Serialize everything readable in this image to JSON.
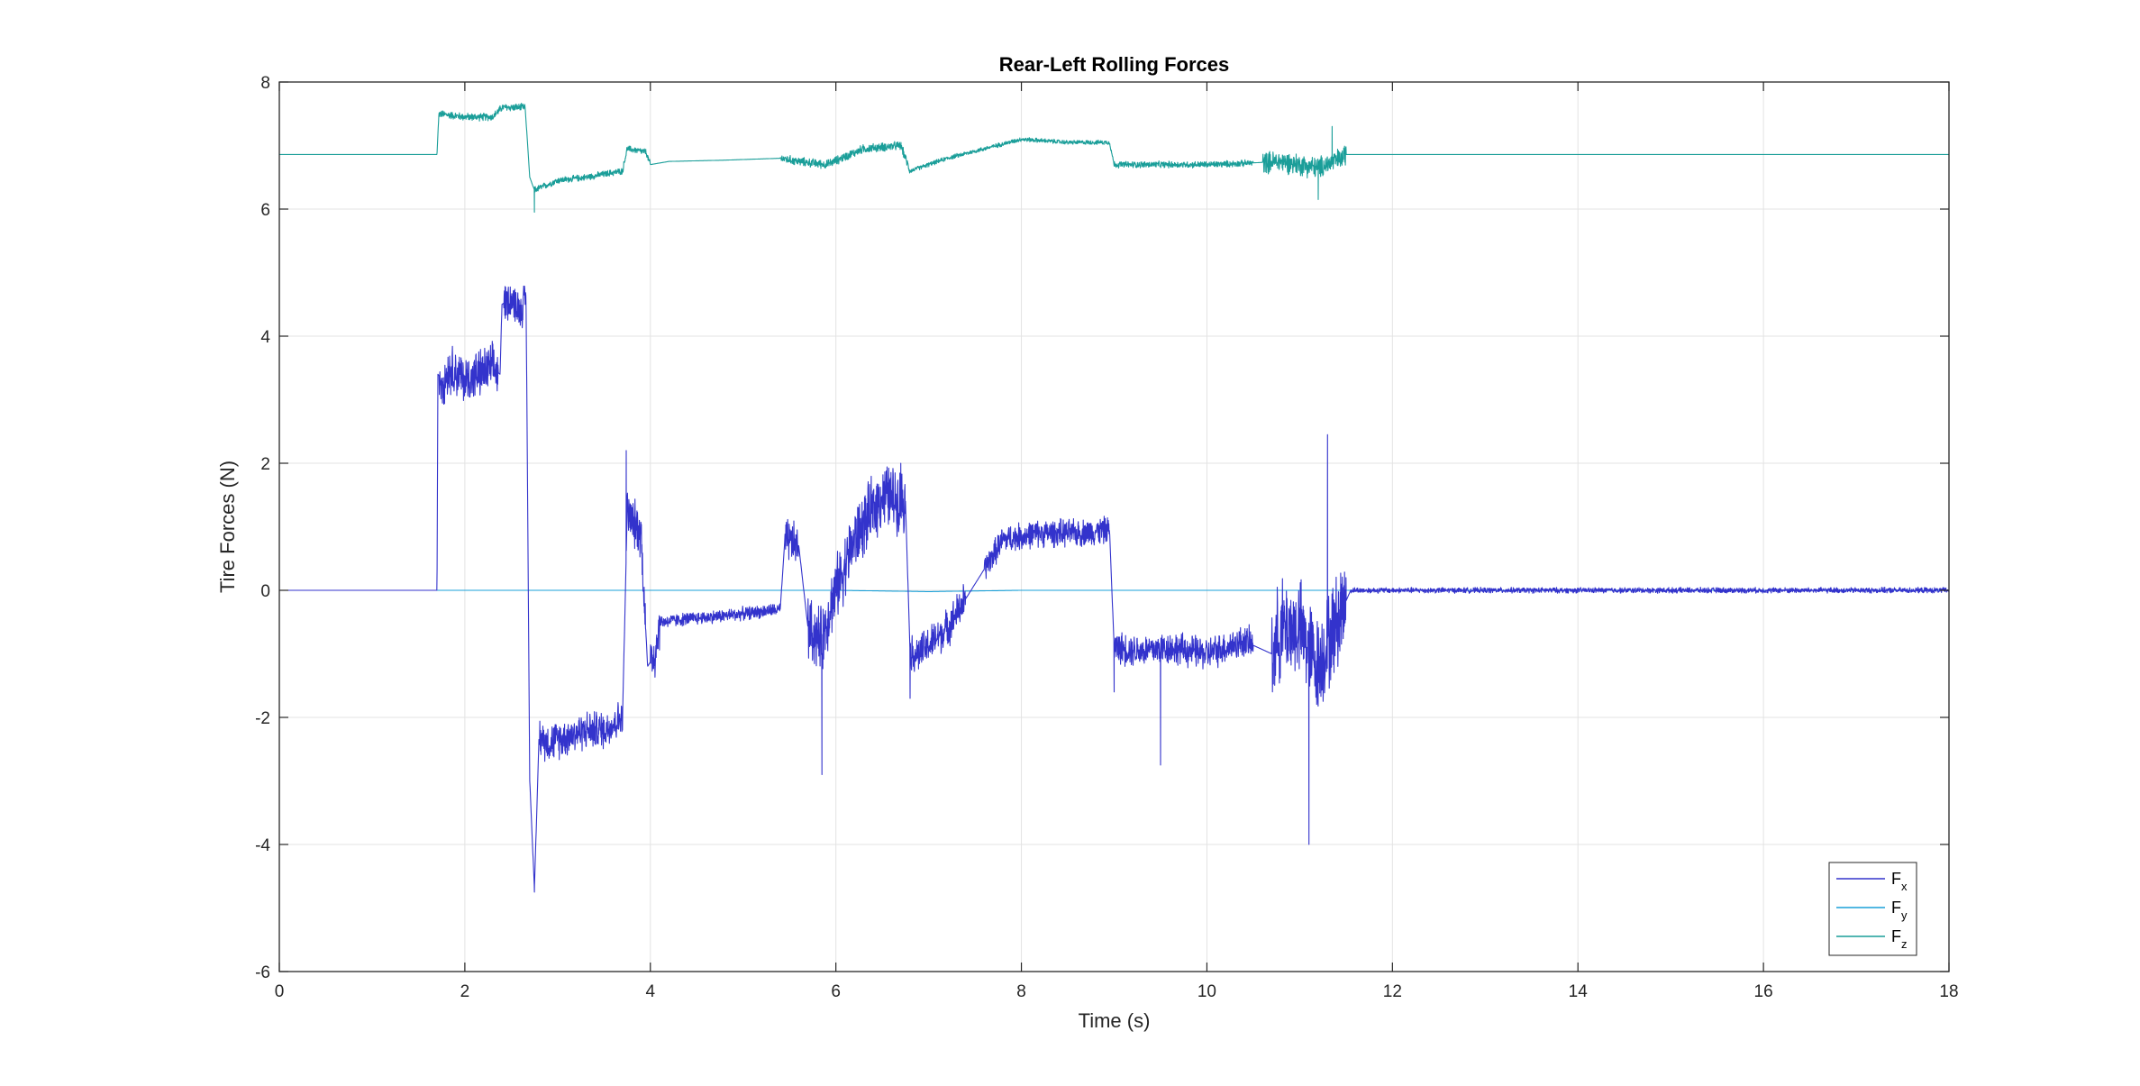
{
  "chart_data": {
    "type": "line",
    "title": "Rear-Left Rolling Forces",
    "xlabel": "Time (s)",
    "ylabel": "Tire Forces (N)",
    "xlim": [
      0,
      18
    ],
    "ylim": [
      -6,
      8
    ],
    "xticks": [
      0,
      2,
      4,
      6,
      8,
      10,
      12,
      14,
      16,
      18
    ],
    "xtick_labels": [
      "0",
      "2",
      "4",
      "6",
      "8",
      "10",
      "12",
      "14",
      "16",
      "18"
    ],
    "yticks": [
      -6,
      -4,
      -2,
      0,
      2,
      4,
      6,
      8
    ],
    "ytick_labels": [
      "-6",
      "-4",
      "-2",
      "0",
      "2",
      "4",
      "6",
      "8"
    ],
    "grid": true,
    "legend_position": "bottom-right",
    "series": [
      {
        "name": "F",
        "subscript": "x",
        "color": "#3333cc",
        "points": [
          [
            0,
            0
          ],
          [
            1.7,
            0
          ],
          [
            1.71,
            3.4
          ],
          [
            1.76,
            3.3
          ],
          [
            1.85,
            3.5
          ],
          [
            2.0,
            3.3
          ],
          [
            2.15,
            3.4
          ],
          [
            2.3,
            3.5
          ],
          [
            2.38,
            3.4
          ],
          [
            2.4,
            4.5
          ],
          [
            2.5,
            4.6
          ],
          [
            2.6,
            4.4
          ],
          [
            2.66,
            4.6
          ],
          [
            2.7,
            -3.0
          ],
          [
            2.75,
            -4.7
          ],
          [
            2.8,
            -2.3
          ],
          [
            2.9,
            -2.4
          ],
          [
            3.1,
            -2.3
          ],
          [
            3.3,
            -2.2
          ],
          [
            3.5,
            -2.2
          ],
          [
            3.7,
            -2.0
          ],
          [
            3.75,
            1.2
          ],
          [
            3.8,
            1.1
          ],
          [
            3.9,
            0.9
          ],
          [
            3.97,
            -1.2
          ],
          [
            4.05,
            -1.0
          ],
          [
            4.1,
            -0.5
          ],
          [
            4.4,
            -0.45
          ],
          [
            4.8,
            -0.4
          ],
          [
            5.1,
            -0.35
          ],
          [
            5.4,
            -0.3
          ],
          [
            5.45,
            0.8
          ],
          [
            5.6,
            0.7
          ],
          [
            5.7,
            -0.6
          ],
          [
            5.85,
            -0.8
          ],
          [
            5.95,
            -0.2
          ],
          [
            6.2,
            0.8
          ],
          [
            6.5,
            1.5
          ],
          [
            6.75,
            1.4
          ],
          [
            6.8,
            -1.0
          ],
          [
            6.9,
            -1.0
          ],
          [
            7.2,
            -0.6
          ],
          [
            7.5,
            0.1
          ],
          [
            7.8,
            0.8
          ],
          [
            8.2,
            0.9
          ],
          [
            8.6,
            0.9
          ],
          [
            8.95,
            0.95
          ],
          [
            9.0,
            -0.9
          ],
          [
            9.3,
            -0.95
          ],
          [
            9.6,
            -0.9
          ],
          [
            10.0,
            -1.0
          ],
          [
            10.4,
            -0.8
          ],
          [
            10.7,
            -1.0
          ],
          [
            10.8,
            -0.6
          ],
          [
            11.0,
            -0.6
          ],
          [
            11.2,
            -1.2
          ],
          [
            11.4,
            -0.5
          ],
          [
            11.55,
            0.0
          ],
          [
            12,
            0.0
          ],
          [
            14,
            0.0
          ],
          [
            16,
            0.0
          ],
          [
            18,
            0.0
          ]
        ]
      },
      {
        "name": "F",
        "subscript": "y",
        "color": "#1aa0d8",
        "points": [
          [
            0,
            0
          ],
          [
            6,
            0
          ],
          [
            7,
            -0.02
          ],
          [
            8,
            0.0
          ],
          [
            9,
            0.0
          ],
          [
            18,
            0.0
          ]
        ]
      },
      {
        "name": "F",
        "subscript": "z",
        "color": "#1a9e99",
        "points": [
          [
            0,
            6.86
          ],
          [
            1.7,
            6.86
          ],
          [
            1.72,
            7.5
          ],
          [
            2.0,
            7.45
          ],
          [
            2.3,
            7.45
          ],
          [
            2.4,
            7.6
          ],
          [
            2.65,
            7.6
          ],
          [
            2.7,
            6.5
          ],
          [
            2.75,
            6.3
          ],
          [
            3.0,
            6.45
          ],
          [
            3.3,
            6.5
          ],
          [
            3.7,
            6.6
          ],
          [
            3.75,
            6.95
          ],
          [
            3.95,
            6.9
          ],
          [
            4.0,
            6.7
          ],
          [
            4.2,
            6.75
          ],
          [
            4.8,
            6.77
          ],
          [
            5.4,
            6.8
          ],
          [
            5.6,
            6.75
          ],
          [
            5.9,
            6.7
          ],
          [
            6.3,
            6.95
          ],
          [
            6.7,
            7.0
          ],
          [
            6.8,
            6.6
          ],
          [
            7.2,
            6.8
          ],
          [
            7.6,
            6.95
          ],
          [
            8.0,
            7.1
          ],
          [
            8.5,
            7.05
          ],
          [
            8.95,
            7.05
          ],
          [
            9.0,
            6.7
          ],
          [
            9.5,
            6.7
          ],
          [
            10.0,
            6.7
          ],
          [
            10.4,
            6.72
          ],
          [
            10.8,
            6.75
          ],
          [
            11.2,
            6.65
          ],
          [
            11.45,
            6.8
          ],
          [
            11.5,
            6.86
          ],
          [
            12,
            6.86
          ],
          [
            18,
            6.86
          ]
        ]
      }
    ],
    "noise_regions": [
      {
        "series": 0,
        "x0": 1.72,
        "x1": 2.36,
        "amp": 0.45
      },
      {
        "series": 0,
        "x0": 2.42,
        "x1": 2.66,
        "amp": 0.35
      },
      {
        "series": 0,
        "x0": 2.8,
        "x1": 3.7,
        "amp": 0.35
      },
      {
        "series": 0,
        "x0": 3.75,
        "x1": 3.95,
        "amp": 0.45
      },
      {
        "series": 0,
        "x0": 4.0,
        "x1": 4.1,
        "amp": 0.5
      },
      {
        "series": 0,
        "x0": 4.1,
        "x1": 5.4,
        "amp": 0.12
      },
      {
        "series": 0,
        "x0": 5.45,
        "x1": 5.6,
        "amp": 0.4
      },
      {
        "series": 0,
        "x0": 5.7,
        "x1": 6.75,
        "amp": 0.6
      },
      {
        "series": 0,
        "x0": 6.8,
        "x1": 7.4,
        "amp": 0.35
      },
      {
        "series": 0,
        "x0": 7.6,
        "x1": 8.95,
        "amp": 0.25
      },
      {
        "series": 0,
        "x0": 9.0,
        "x1": 10.5,
        "amp": 0.3
      },
      {
        "series": 0,
        "x0": 10.7,
        "x1": 11.5,
        "amp": 0.9
      },
      {
        "series": 0,
        "x0": 11.55,
        "x1": 18,
        "amp": 0.05
      },
      {
        "series": 2,
        "x0": 1.72,
        "x1": 2.65,
        "amp": 0.07
      },
      {
        "series": 2,
        "x0": 2.75,
        "x1": 4.0,
        "amp": 0.06
      },
      {
        "series": 2,
        "x0": 5.4,
        "x1": 6.8,
        "amp": 0.08
      },
      {
        "series": 2,
        "x0": 6.8,
        "x1": 9.0,
        "amp": 0.04
      },
      {
        "series": 2,
        "x0": 9.0,
        "x1": 10.5,
        "amp": 0.06
      },
      {
        "series": 2,
        "x0": 10.6,
        "x1": 11.5,
        "amp": 0.2
      }
    ],
    "spikes": [
      {
        "series": 0,
        "x": 2.75,
        "y": -4.75
      },
      {
        "series": 0,
        "x": 3.74,
        "y": 2.2
      },
      {
        "series": 0,
        "x": 5.85,
        "y": -2.9
      },
      {
        "series": 0,
        "x": 6.8,
        "y": -1.7
      },
      {
        "series": 0,
        "x": 9.0,
        "y": -1.6
      },
      {
        "series": 0,
        "x": 9.5,
        "y": -2.75
      },
      {
        "series": 0,
        "x": 11.1,
        "y": -4.0
      },
      {
        "series": 0,
        "x": 11.3,
        "y": 2.45
      },
      {
        "series": 0,
        "x": 6.7,
        "y": 2.0
      },
      {
        "series": 2,
        "x": 2.75,
        "y": 5.95
      },
      {
        "series": 2,
        "x": 11.35,
        "y": 7.3
      },
      {
        "series": 2,
        "x": 11.2,
        "y": 6.15
      }
    ]
  }
}
